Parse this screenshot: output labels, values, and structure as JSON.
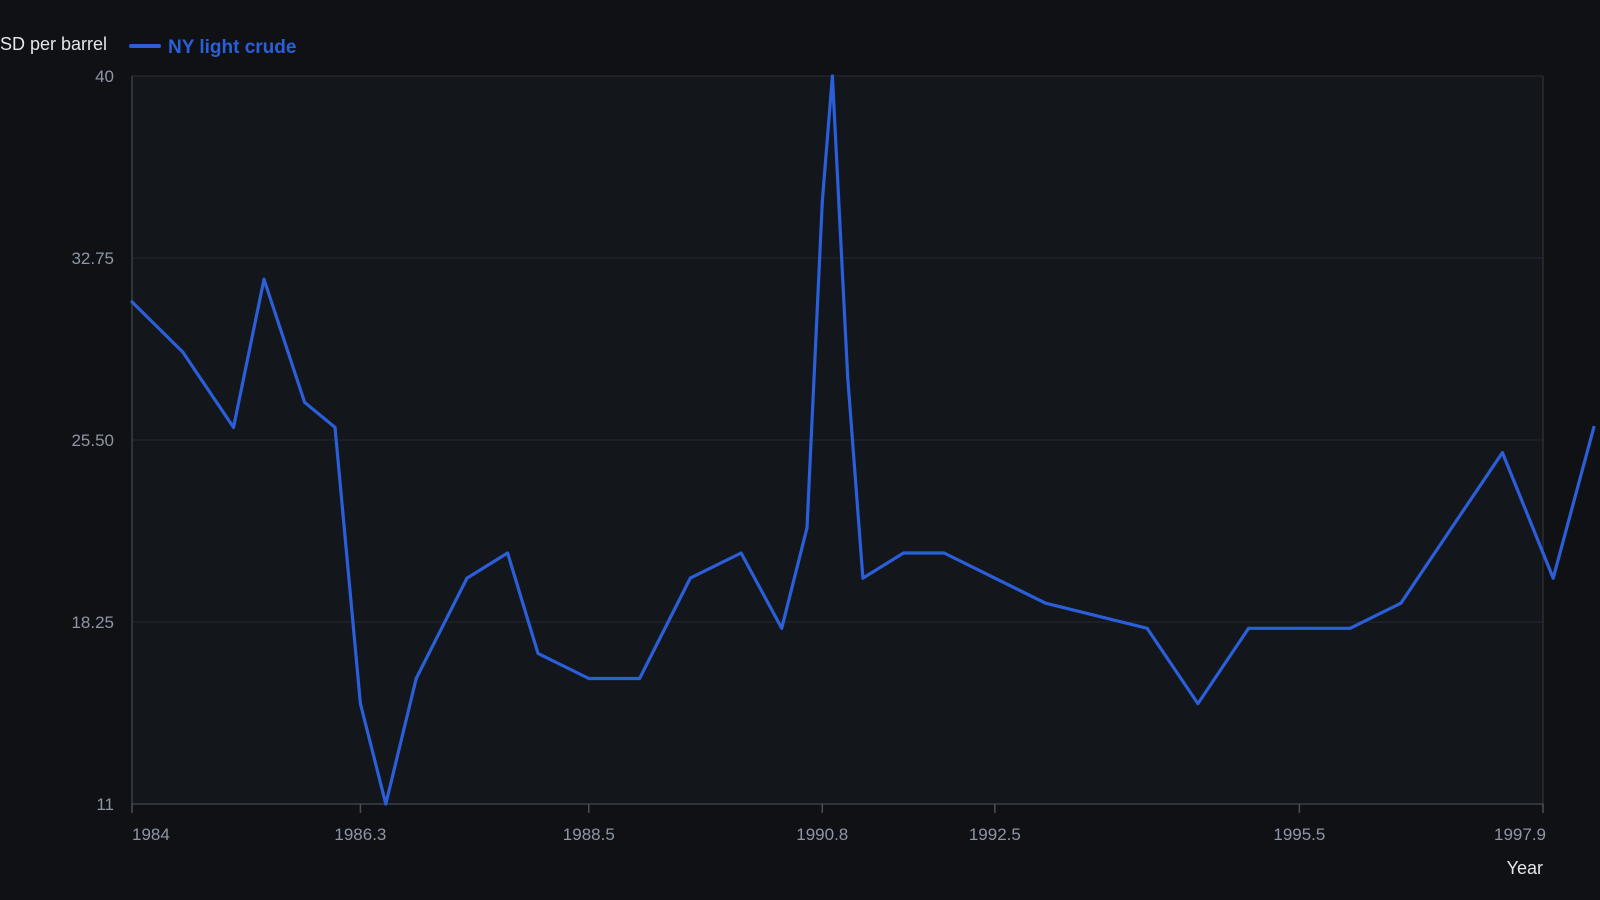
{
  "chart_data": {
    "type": "line",
    "ylabel": "SD per barrel",
    "xlabel": "Year",
    "xlim": [
      1984,
      1997.9
    ],
    "ylim": [
      11,
      40
    ],
    "x_ticks": [
      {
        "value": 1984,
        "label": "1984"
      },
      {
        "value": 1986.25,
        "label": "1986.3"
      },
      {
        "value": 1988.5,
        "label": "1988.5"
      },
      {
        "value": 1990.8,
        "label": "1990.8"
      },
      {
        "value": 1992.5,
        "label": "1992.5"
      },
      {
        "value": 1995.5,
        "label": "1995.5"
      },
      {
        "value": 1997.9,
        "label": "1997.9"
      }
    ],
    "y_ticks": [
      {
        "value": 11,
        "label": "11"
      },
      {
        "value": 18.25,
        "label": "18.25"
      },
      {
        "value": 25.5,
        "label": "25.50"
      },
      {
        "value": 32.75,
        "label": "32.75"
      },
      {
        "value": 40,
        "label": "40"
      }
    ],
    "grid": true,
    "legend_position": "top-left",
    "series": [
      {
        "name": "NY light crude",
        "color": "#2b5fd9",
        "points": [
          {
            "x": 1984.0,
            "y": 31.0
          },
          {
            "x": 1984.5,
            "y": 29.0
          },
          {
            "x": 1985.0,
            "y": 26.0
          },
          {
            "x": 1985.3,
            "y": 31.9
          },
          {
            "x": 1985.7,
            "y": 27.0
          },
          {
            "x": 1986.0,
            "y": 26.0
          },
          {
            "x": 1986.25,
            "y": 15.0
          },
          {
            "x": 1986.5,
            "y": 11.0
          },
          {
            "x": 1986.8,
            "y": 16.0
          },
          {
            "x": 1987.3,
            "y": 20.0
          },
          {
            "x": 1987.7,
            "y": 21.0
          },
          {
            "x": 1988.0,
            "y": 17.0
          },
          {
            "x": 1988.5,
            "y": 16.0
          },
          {
            "x": 1989.0,
            "y": 16.0
          },
          {
            "x": 1989.5,
            "y": 20.0
          },
          {
            "x": 1990.0,
            "y": 21.0
          },
          {
            "x": 1990.4,
            "y": 18.0
          },
          {
            "x": 1990.65,
            "y": 22.0
          },
          {
            "x": 1990.8,
            "y": 35.0
          },
          {
            "x": 1990.9,
            "y": 40.0
          },
          {
            "x": 1991.05,
            "y": 28.0
          },
          {
            "x": 1991.2,
            "y": 20.0
          },
          {
            "x": 1991.6,
            "y": 21.0
          },
          {
            "x": 1992.0,
            "y": 21.0
          },
          {
            "x": 1993.0,
            "y": 19.0
          },
          {
            "x": 1994.0,
            "y": 18.0
          },
          {
            "x": 1994.5,
            "y": 15.0
          },
          {
            "x": 1995.0,
            "y": 18.0
          },
          {
            "x": 1995.5,
            "y": 18.0
          },
          {
            "x": 1996.0,
            "y": 18.0
          },
          {
            "x": 1996.5,
            "y": 19.0
          },
          {
            "x": 1997.0,
            "y": 22.0
          },
          {
            "x": 1997.5,
            "y": 25.0
          },
          {
            "x": 1998.0,
            "y": 20.0
          },
          {
            "x": 1998.4,
            "y": 26.0
          }
        ]
      }
    ]
  }
}
